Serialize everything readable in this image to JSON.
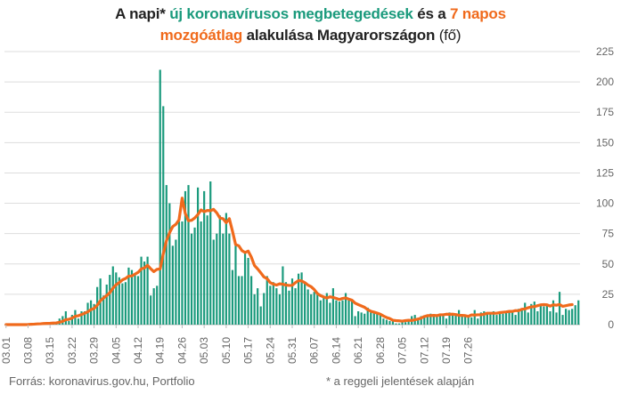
{
  "title": {
    "part1": "A napi* ",
    "part2": "új koronavírusos megbetegedések",
    "part3": " és a ",
    "part4": "7 napos",
    "part5": "mozgóátlag",
    "part6": " alakulása Magyarországon ",
    "part7": "(fő)"
  },
  "footer": {
    "source": "Forrás: koronavirus.gov.hu, Portfolio",
    "note": "* a reggeli jelentések alapján"
  },
  "colors": {
    "bars": "#1a9a7c",
    "line": "#f06a1c",
    "grid": "#dddddd",
    "axis_text": "#666666"
  },
  "chart_data": {
    "type": "bar",
    "ylim": [
      0,
      225
    ],
    "yticks": [
      0,
      25,
      50,
      75,
      100,
      125,
      150,
      175,
      200,
      225
    ],
    "xticks": [
      "03.01",
      "03.08",
      "03.15",
      "03.22",
      "03.29",
      "04.05",
      "04.12",
      "04.19",
      "04.26",
      "05.03",
      "05.10",
      "05.17",
      "05.24",
      "05.31",
      "06.07",
      "06.14",
      "06.21",
      "06.28",
      "07.05",
      "07.12",
      "07.19",
      "07.26"
    ],
    "grid": true,
    "series": [
      {
        "name": "új koronavírusos megbetegedések",
        "kind": "bar",
        "values": [
          0,
          0,
          0,
          0,
          0,
          0,
          0,
          0,
          1,
          1,
          1,
          1,
          1,
          1,
          1,
          2,
          2,
          5,
          7,
          11,
          3,
          8,
          12,
          5,
          11,
          11,
          18,
          20,
          17,
          31,
          38,
          24,
          33,
          41,
          48,
          43,
          39,
          34,
          35,
          47,
          45,
          42,
          40,
          56,
          52,
          56,
          24,
          30,
          32,
          210,
          180,
          115,
          100,
          65,
          70,
          85,
          85,
          110,
          115,
          75,
          80,
          113,
          85,
          110,
          90,
          118,
          70,
          75,
          90,
          75,
          92,
          75,
          45,
          65,
          40,
          40,
          60,
          55,
          40,
          25,
          30,
          15,
          26,
          40,
          32,
          35,
          30,
          25,
          48,
          35,
          28,
          38,
          30,
          42,
          43,
          35,
          29,
          25,
          27,
          26,
          20,
          22,
          26,
          18,
          30,
          20,
          19,
          20,
          26,
          20,
          20,
          7,
          11,
          10,
          9,
          14,
          10,
          10,
          9,
          8,
          5,
          4,
          3,
          3,
          1,
          1,
          2,
          2,
          3,
          7,
          8,
          5,
          7,
          6,
          7,
          9,
          8,
          8,
          7,
          9,
          5,
          10,
          9,
          8,
          12,
          7,
          8,
          7,
          6,
          12,
          5,
          10,
          11,
          9,
          10,
          11,
          8,
          9,
          9,
          10,
          11,
          12,
          8,
          13,
          12,
          18,
          10,
          17,
          19,
          11,
          17,
          15,
          17,
          11,
          20,
          10,
          27,
          8,
          13,
          12,
          13,
          16,
          20
        ]
      },
      {
        "name": "7 napos mozgóátlag",
        "kind": "line",
        "values": [
          0,
          0,
          0,
          0,
          0,
          0,
          0,
          0.1,
          0.3,
          0.4,
          0.6,
          0.7,
          0.9,
          1,
          1.1,
          1.3,
          1.4,
          2,
          2.7,
          4.1,
          4.4,
          5.4,
          6.9,
          7.3,
          8.3,
          9.4,
          10.6,
          12.4,
          13.4,
          16,
          19.7,
          21.9,
          24,
          26.3,
          30,
          32.9,
          34.6,
          36.9,
          38,
          40,
          40.1,
          41.6,
          43.1,
          45.9,
          46.7,
          48.9,
          46,
          43.7,
          45.6,
          45.9,
          58.4,
          69.1,
          75.7,
          80.8,
          82.7,
          86.3,
          104.3,
          91.5,
          85.6,
          86,
          87.9,
          90.7,
          94.5,
          93.1,
          94.1,
          93.9,
          95,
          92.1,
          87.9,
          87.3,
          84,
          87.3,
          77,
          66,
          65,
          61,
          59.4,
          60.6,
          55.6,
          48.7,
          45.9,
          42.7,
          39.3,
          37.9,
          34.6,
          33.4,
          32.6,
          33.6,
          33.3,
          32.6,
          32.3,
          32.4,
          34.6,
          36.3,
          36,
          34.6,
          32.6,
          31.3,
          28.9,
          25.6,
          23.9,
          22.8,
          21.9,
          22.9,
          22.4,
          21.6,
          20.7,
          21.6,
          22,
          21,
          20.1,
          17.7,
          16.5,
          15.4,
          14.3,
          12.3,
          11,
          10.3,
          9.5,
          8.6,
          7.1,
          5.9,
          5,
          3.6,
          3.3,
          3.1,
          2.9,
          3.3,
          3.6,
          3.4,
          4,
          4.6,
          5.4,
          6.7,
          7.4,
          7.4,
          7.6,
          7.4,
          8.1,
          8.1,
          8.6,
          8.5,
          8.6,
          8.3,
          7.7,
          7.6,
          7.4,
          6.8,
          8,
          7.9,
          8.1,
          8.1,
          8.6,
          9.4,
          9.4,
          9.4,
          9.4,
          9.9,
          10.2,
          10.5,
          10.9,
          10.9,
          11.6,
          11.5,
          12.7,
          12.9,
          13.9,
          14.6,
          14.9,
          15.6,
          16.3,
          16.5,
          16.3,
          15.3,
          16.3,
          16,
          16.6,
          15.1,
          15.6,
          16.2,
          16.5
        ]
      }
    ]
  }
}
